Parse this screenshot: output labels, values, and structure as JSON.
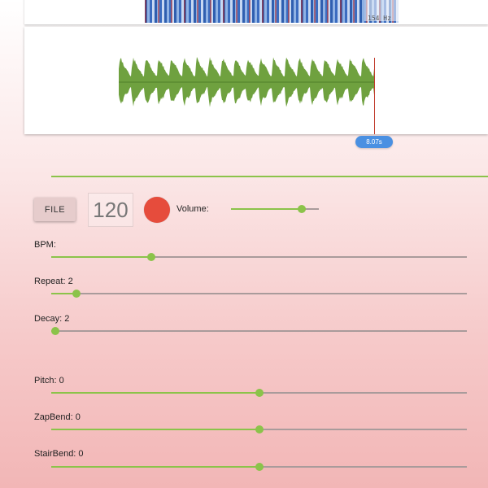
{
  "spectrogram": {
    "freq_label": "154 Hz"
  },
  "waveform": {
    "color": "#6fa13f",
    "time_badge": "8.07s"
  },
  "progress": {
    "color": "#8bc34a"
  },
  "controls": {
    "file_label": "FILE",
    "bpm_value": "120",
    "record_color": "#e64c3c",
    "volume_label": "Volume:",
    "volume_level": 0.81
  },
  "sliders": [
    {
      "key": "bpm",
      "label": "BPM:",
      "level": 0.24
    },
    {
      "key": "repeat",
      "label": "Repeat: 2",
      "level": 0.06
    },
    {
      "key": "decay",
      "label": "Decay: 2",
      "level": 0.01
    },
    {
      "key": "pitch",
      "label": "Pitch: 0",
      "level": 0.5
    },
    {
      "key": "zapbend",
      "label": "ZapBend: 0",
      "level": 0.5
    },
    {
      "key": "stairbend",
      "label": "StairBend: 0",
      "level": 0.5
    }
  ]
}
